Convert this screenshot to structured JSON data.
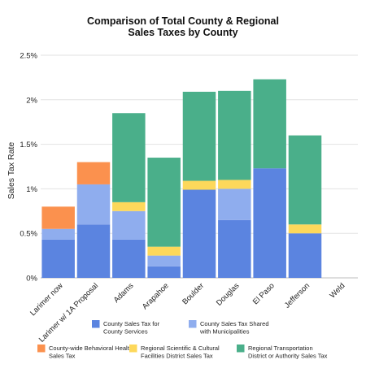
{
  "chart_data": {
    "type": "bar",
    "stacked": true,
    "title": [
      "Comparison of Total County & Regional",
      "Sales Taxes by County"
    ],
    "ylabel": "Sales Tax Rate",
    "xlabel": "",
    "ylim": [
      0,
      2.5
    ],
    "yticks": [
      0,
      0.5,
      1,
      1.5,
      2,
      2.5
    ],
    "ytick_labels": [
      "0%",
      "0.5%",
      "1%",
      "1.5%",
      "2%",
      "2.5%"
    ],
    "grid": true,
    "legend_position": "bottom",
    "categories": [
      "Larimer now",
      "Larimer w/ 1A Proposal",
      "Adams",
      "Arapahoe",
      "Boulder",
      "Douglas",
      "El Paso",
      "Jefferson",
      "Weld"
    ],
    "series": [
      {
        "name": [
          "County Sales Tax for",
          "County Services"
        ],
        "color": "#5b84e0",
        "values": [
          0.43,
          0.6,
          0.43,
          0.13,
          0.99,
          0.65,
          1.23,
          0.5,
          0
        ]
      },
      {
        "name": [
          "County Sales Tax Shared",
          "with Municipalities"
        ],
        "color": "#8fadee",
        "values": [
          0.12,
          0.45,
          0.32,
          0.12,
          0,
          0.35,
          0,
          0,
          0
        ]
      },
      {
        "name": [
          "County-wide Behavioral Health",
          "Sales Tax"
        ],
        "color": "#fb914e",
        "values": [
          0.25,
          0.25,
          0,
          0,
          0,
          0,
          0,
          0,
          0
        ]
      },
      {
        "name": [
          "Regional Scientific & Cultural",
          "Facilities District Sales Tax"
        ],
        "color": "#fdd85b",
        "values": [
          0,
          0,
          0.1,
          0.1,
          0.1,
          0.1,
          0,
          0.1,
          0
        ]
      },
      {
        "name": [
          "Regional Transportation",
          "District or Authority Sales Tax"
        ],
        "color": "#4aaf8a",
        "values": [
          0,
          0,
          1.0,
          1.0,
          1.0,
          1.0,
          1.0,
          1.0,
          0
        ]
      }
    ]
  }
}
